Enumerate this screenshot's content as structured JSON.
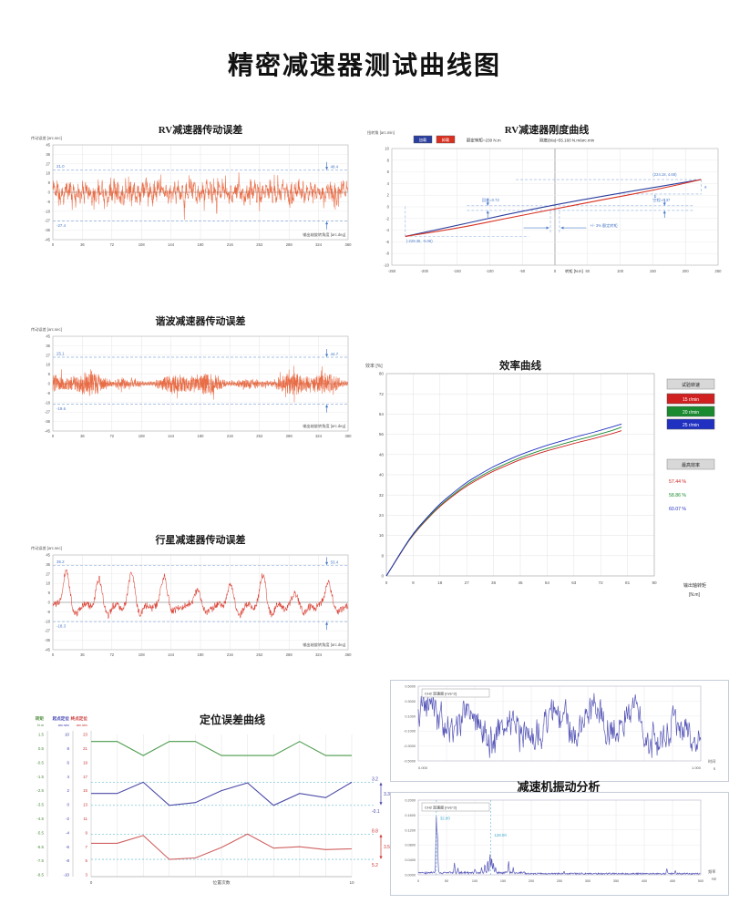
{
  "page": {
    "title": "精密减速器测试曲线图"
  },
  "vibration_section_title": "减速机振动分析",
  "chart_data": [
    {
      "id": "rv_error",
      "type": "line",
      "subtype": "noise",
      "title": "RV减速器传动误差",
      "ylabel": "传动误差 [arc.sec]",
      "xlabel": "输出轴旋转角度 [arc.deg]",
      "xlim": [
        0,
        360
      ],
      "ylim": [
        -45,
        45
      ],
      "xticks": [
        0,
        36,
        72,
        108,
        144,
        180,
        216,
        252,
        288,
        324,
        360
      ],
      "yticks": [
        45,
        36,
        27,
        18,
        9,
        0,
        -9,
        -18,
        -27,
        -36,
        -45
      ],
      "upper_bound": 21.0,
      "lower_bound": -27.4,
      "upper_label": "21.0",
      "lower_label": "-27.4",
      "peak_to_peak_label": "48.4",
      "line_color": "#e8663e",
      "seed": 11
    },
    {
      "id": "rv_stiffness",
      "type": "line",
      "subtype": "hysteresis",
      "title": "RV减速器刚度曲线",
      "ylabel": "扭转角 [arc.min]",
      "xlabel": "转矩 [N.m]",
      "header_left": "额定转矩=230 N.m",
      "header_right": "刚度(b/a)=55.160 N.m/arc.min",
      "xlim": [
        -250,
        250
      ],
      "ylim": [
        -10,
        10
      ],
      "xticks": [
        -250,
        -200,
        -150,
        -100,
        -50,
        0,
        50,
        100,
        150,
        200,
        250
      ],
      "yticks": [
        10,
        8,
        6,
        4,
        2,
        0,
        -2,
        -4,
        -6,
        -8,
        -10
      ],
      "legend": [
        {
          "label": "加载",
          "color": "#2b3f9e"
        },
        {
          "label": "卸载",
          "color": "#d93020"
        }
      ],
      "series": [
        {
          "name": "加载",
          "color": "#2b3f9e",
          "points": [
            [
              -229.35,
              -5.06
            ],
            [
              -150,
              -3.18
            ],
            [
              -75,
              -1.32
            ],
            [
              0,
              0.36
            ],
            [
              75,
              1.88
            ],
            [
              150,
              3.32
            ],
            [
              224.18,
              4.68
            ]
          ]
        },
        {
          "name": "卸载",
          "color": "#d93020",
          "points": [
            [
              -229.35,
              -5.06
            ],
            [
              -150,
              -3.72
            ],
            [
              -75,
              -1.98
            ],
            [
              0,
              -0.36
            ],
            [
              75,
              1.28
            ],
            [
              150,
              2.82
            ],
            [
              224.18,
              4.68
            ]
          ]
        }
      ],
      "annotations": {
        "end_point": "(224.18, 4.68)",
        "start_point": "(-229.35, -5.06)",
        "hysteresis": "回差=0.72",
        "lost_motion": "空程=0.37",
        "rated_torque_band": "+/- 3% 额定转矩",
        "a_label": "a",
        "b_label": "b"
      }
    },
    {
      "id": "harmonic_error",
      "type": "line",
      "subtype": "noise",
      "title": "谐波减速器传动误差",
      "ylabel": "传动误差 [arc.sec]",
      "xlabel": "输出轴旋转角度 [arc.deg]",
      "xlim": [
        0,
        360
      ],
      "ylim": [
        -45,
        45
      ],
      "xticks": [
        0,
        36,
        72,
        108,
        144,
        180,
        216,
        252,
        288,
        324,
        360
      ],
      "yticks": [
        45,
        36,
        27,
        18,
        9,
        0,
        -9,
        -18,
        -27,
        -36,
        -45
      ],
      "upper_bound": 25.1,
      "lower_bound": -19.6,
      "upper_label": "25.1",
      "lower_label": "-19.6",
      "peak_to_peak_label": "44.7",
      "line_color": "#e8663e",
      "seed": 23
    },
    {
      "id": "efficiency",
      "type": "line",
      "title": "效率曲线",
      "ylabel": "效率 [%]",
      "xlabel_line1": "输出轴转矩",
      "xlabel_line2": "[N.m]",
      "xlim": [
        0,
        90
      ],
      "ylim": [
        0,
        80
      ],
      "xticks": [
        0,
        9,
        18,
        27,
        36,
        45,
        54,
        63,
        72,
        81,
        90
      ],
      "yticks": [
        0,
        8,
        16,
        24,
        32,
        40,
        48,
        56,
        64,
        72,
        80
      ],
      "legend_title": "试验转速",
      "x": [
        0,
        3,
        6,
        9,
        13,
        18,
        23,
        27,
        32,
        36,
        41,
        45,
        50,
        54,
        59,
        63,
        68,
        72,
        76,
        79
      ],
      "series": [
        {
          "name": "15 r/min",
          "color": "#d02020",
          "y": [
            0,
            5.6,
            11.2,
            16.3,
            21.6,
            27.6,
            32.2,
            35.6,
            39.0,
            41.5,
            44.0,
            46.0,
            48.0,
            49.5,
            51.1,
            52.4,
            53.8,
            55.1,
            56.3,
            57.44
          ]
        },
        {
          "name": "20 r/min",
          "color": "#1a8a30",
          "y": [
            0,
            5.7,
            11.3,
            16.5,
            21.9,
            28.0,
            32.7,
            36.2,
            39.7,
            42.2,
            44.8,
            46.8,
            48.9,
            50.4,
            52.1,
            53.4,
            54.9,
            56.2,
            57.5,
            58.86
          ]
        },
        {
          "name": "25 r/min",
          "color": "#2030c0",
          "y": [
            0,
            5.8,
            11.5,
            16.8,
            22.3,
            28.6,
            33.4,
            37.1,
            40.6,
            43.3,
            45.9,
            48.0,
            50.1,
            51.7,
            53.4,
            54.8,
            56.3,
            57.6,
            59.0,
            60.07
          ]
        }
      ],
      "max_eff_title": "最高效率",
      "max_eff": [
        {
          "value": "57.44 %",
          "color": "#d02020"
        },
        {
          "value": "58.86 %",
          "color": "#1a8a30"
        },
        {
          "value": "60.07 %",
          "color": "#2030c0"
        }
      ]
    },
    {
      "id": "planetary_error",
      "type": "line",
      "subtype": "periodic",
      "title": "行星减速器传动误差",
      "ylabel": "传动误差 [arc.sec]",
      "xlabel": "输出轴旋转角度 [arc.deg]",
      "xlim": [
        0,
        360
      ],
      "ylim": [
        -45,
        45
      ],
      "xticks": [
        0,
        36,
        72,
        108,
        144,
        180,
        216,
        252,
        288,
        324,
        360
      ],
      "yticks": [
        45,
        36,
        27,
        18,
        9,
        0,
        -9,
        -18,
        -27,
        -36,
        -45
      ],
      "upper_bound": 35.2,
      "lower_bound": -18.3,
      "upper_label": "35.2",
      "lower_label": "-18.3",
      "peak_to_peak_label": "53.4",
      "line_color": "#d9382a",
      "seed": 41
    },
    {
      "id": "positioning",
      "type": "line",
      "title": "定位误差曲线",
      "xlabel": "位置次数",
      "x_start_label": "0",
      "x_end_label": "10",
      "axes": [
        {
          "label": "转矩",
          "unit": "N.m",
          "color": "#4a8a3a",
          "ticks": [
            1.5,
            0.5,
            -0.5,
            -1.5,
            -2.5,
            -3.5,
            -4.5,
            -5.5,
            -6.5,
            -7.5,
            -8.5
          ]
        },
        {
          "label": "起点定位",
          "unit": "arc.sec",
          "color": "#3b3bb0",
          "ticks": [
            10,
            8,
            6,
            4,
            2,
            0,
            -2,
            -4,
            -6,
            -8,
            -10
          ]
        },
        {
          "label": "终点定位",
          "unit": "arc.sec",
          "color": "#cc3333",
          "ticks": [
            23,
            21,
            19,
            17,
            15,
            13,
            11,
            9,
            7,
            5,
            3
          ]
        }
      ],
      "x": [
        0,
        1,
        2,
        3,
        4,
        5,
        6,
        7,
        8,
        9,
        10
      ],
      "series": [
        {
          "name": "转矩",
          "axis": 0,
          "color": "#4a9a4a",
          "values": [
            1.0,
            1.0,
            0.0,
            1.0,
            1.0,
            0.0,
            0.0,
            0.0,
            1.0,
            0.0,
            0.0
          ]
        },
        {
          "name": "起点定位",
          "axis": 1,
          "color": "#4a4aa8",
          "values": [
            1.6,
            1.6,
            3.2,
            -0.1,
            0.3,
            2.0,
            3.1,
            -0.1,
            1.6,
            1.0,
            3.2
          ]
        },
        {
          "name": "终点定位",
          "axis": 2,
          "color": "#d06060",
          "values": [
            7.5,
            7.5,
            8.6,
            5.2,
            5.4,
            6.9,
            8.8,
            6.8,
            7.0,
            6.6,
            6.7
          ]
        }
      ],
      "markers": {
        "blue_max": "3.2",
        "blue_min": "-0.1",
        "blue_span": "3.3",
        "red_max": "8.8",
        "red_min": "5.2",
        "red_span": "3.5"
      }
    },
    {
      "id": "vib_time",
      "type": "line",
      "subtype": "vibration",
      "box_label": "CH2 加速度 [m/s^2]",
      "ylim": [
        -0.5,
        0.5
      ],
      "xlim": [
        0,
        1
      ],
      "ytick_labels": [
        "0.5000",
        "0.3000",
        "0.1000",
        "-0.1000",
        "-0.3000",
        "-0.5000"
      ],
      "ytick_values": [
        0.5,
        0.3,
        0.1,
        -0.1,
        -0.3,
        -0.5
      ],
      "x_start_label": "0.000",
      "x_end_label": "1.000",
      "xunit_line1": "时间",
      "xunit_line2": "s",
      "color": "#5858b8",
      "seed": 5
    },
    {
      "id": "vib_fft",
      "type": "line",
      "subtype": "spectrum",
      "box_label": "CH2 加速度 [m/s^2]",
      "ylim": [
        0,
        0.2
      ],
      "xlim": [
        0,
        500
      ],
      "ytick_labels": [
        "0.2000",
        "0.1600",
        "0.1200",
        "0.0800",
        "0.0400",
        "0.0000"
      ],
      "ytick_values": [
        0.2,
        0.16,
        0.12,
        0.08,
        0.04,
        0.0
      ],
      "xticks": [
        0,
        50,
        100,
        150,
        200,
        250,
        300,
        350,
        400,
        450,
        500
      ],
      "xunit_line1": "频率",
      "xunit_line2": "Hz",
      "peak_labels": [
        "32.00",
        "128.00"
      ],
      "peak_positions": [
        32,
        128
      ],
      "peaks": [
        [
          32,
          0.145
        ],
        [
          34,
          0.105
        ],
        [
          64,
          0.027
        ],
        [
          70,
          0.012
        ],
        [
          100,
          0.009
        ],
        [
          112,
          0.014
        ],
        [
          118,
          0.02
        ],
        [
          123,
          0.034
        ],
        [
          127,
          0.052
        ],
        [
          130,
          0.04
        ],
        [
          133,
          0.026
        ],
        [
          137,
          0.015
        ],
        [
          160,
          0.032
        ],
        [
          168,
          0.012
        ],
        [
          258,
          0.005
        ],
        [
          440,
          0.013
        ],
        [
          455,
          0.006
        ]
      ],
      "color": "#5858b8",
      "seed": 9
    }
  ]
}
